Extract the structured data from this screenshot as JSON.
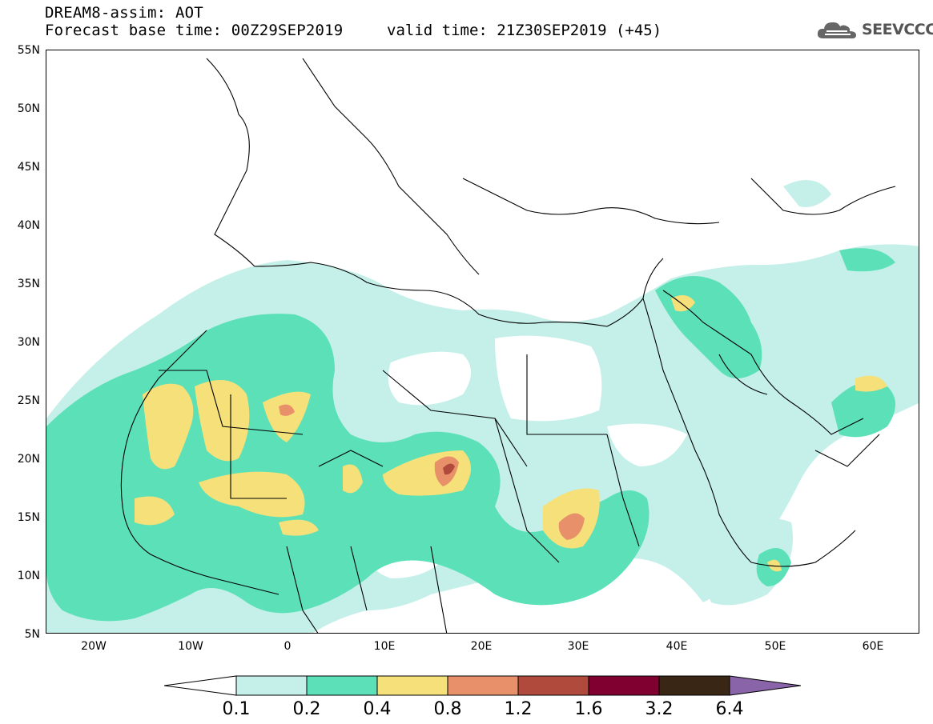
{
  "header": {
    "title": "DREAM8-assim: AOT",
    "base_time": "Forecast base time: 00Z29SEP2019",
    "valid_time": "valid time: 21Z30SEP2019 (+45)"
  },
  "logo": {
    "text": "SEEVCCC"
  },
  "map": {
    "lat_labels": [
      "55N",
      "50N",
      "45N",
      "40N",
      "35N",
      "30N",
      "25N",
      "20N",
      "15N",
      "10N",
      "5N"
    ],
    "lon_labels": [
      "20W",
      "10W",
      "0",
      "10E",
      "20E",
      "30E",
      "40E",
      "50E",
      "60E"
    ]
  },
  "legend": {
    "labels": [
      "0.1",
      "0.2",
      "0.4",
      "0.8",
      "1.2",
      "1.6",
      "3.2",
      "6.4"
    ],
    "colors": [
      "#ffffff",
      "#c4f0e9",
      "#5ce0b8",
      "#f5e07a",
      "#e8906a",
      "#b04a3c",
      "#800030",
      "#3a2614",
      "#8a64a8"
    ]
  }
}
